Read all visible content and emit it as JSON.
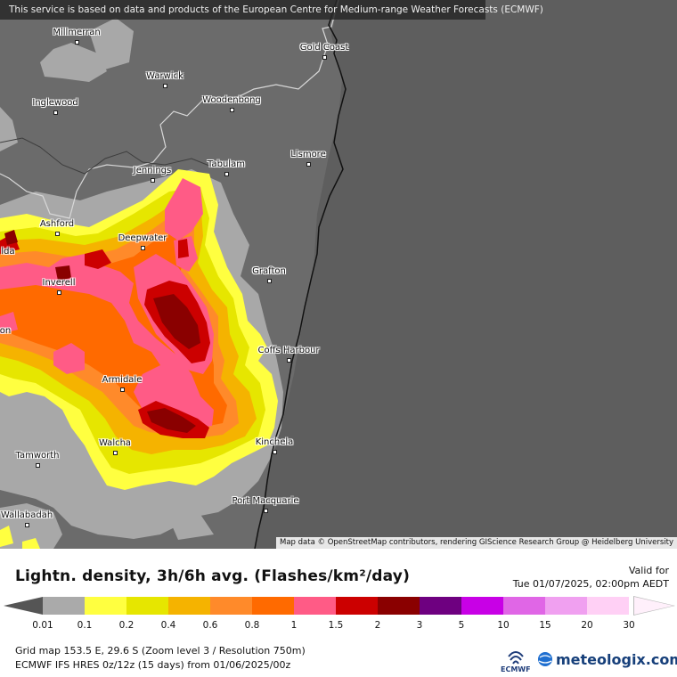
{
  "banner": "This service is based on data and products of the European Centre for Medium-range Weather Forecasts (ECMWF)",
  "attribution": "Map data © OpenStreetMap contributors, rendering GIScience Research Group @ Heidelberg University",
  "cities": [
    {
      "id": "millmerran",
      "name": "Millmerran"
    },
    {
      "id": "gold-coast",
      "name": "Gold Coast"
    },
    {
      "id": "warwick",
      "name": "Warwick"
    },
    {
      "id": "inglewood",
      "name": "Inglewood"
    },
    {
      "id": "woodenbong",
      "name": "Woodenbong"
    },
    {
      "id": "lismore",
      "name": "Lismore"
    },
    {
      "id": "jennings",
      "name": "Jennings"
    },
    {
      "id": "tabulam",
      "name": "Tabulam"
    },
    {
      "id": "ashford",
      "name": "Ashford"
    },
    {
      "id": "deepwater",
      "name": "Deepwater"
    },
    {
      "id": "bundarra",
      "name": "lda"
    },
    {
      "id": "inverell",
      "name": "Inverell"
    },
    {
      "id": "grafton",
      "name": "Grafton"
    },
    {
      "id": "barraba",
      "name": "on"
    },
    {
      "id": "coffs-harbour",
      "name": "Coffs Harbour"
    },
    {
      "id": "armidale",
      "name": "Armidale"
    },
    {
      "id": "kinchela",
      "name": "Kinchela"
    },
    {
      "id": "walcha",
      "name": "Walcha"
    },
    {
      "id": "tamworth",
      "name": "Tamworth"
    },
    {
      "id": "port-macquarie",
      "name": "Port Macquarie"
    },
    {
      "id": "wallabadah",
      "name": "Wallabadah"
    }
  ],
  "legend": {
    "title": "Lightn. density, 3h/6h avg. (Flashes/km²/day)",
    "valid_label": "Valid for",
    "valid_time": "Tue 01/07/2025, 02:00pm AEDT",
    "ticks": [
      "0.01",
      "0.1",
      "0.2",
      "0.4",
      "0.6",
      "0.8",
      "1",
      "1.5",
      "2",
      "3",
      "5",
      "10",
      "15",
      "20",
      "30"
    ],
    "colors": [
      "#aaaaaa",
      "#ffff40",
      "#e6e600",
      "#f5b300",
      "#ff8a2a",
      "#ff6a00",
      "#ff5b86",
      "#cc0000",
      "#8a0000",
      "#6e0080",
      "#c800e6",
      "#e066e6",
      "#f0a0f0",
      "#ffd0f5"
    ],
    "below_color": "#555555",
    "above_color": "#fff0fb"
  },
  "footer": {
    "grid_info": "Grid map 153.5 E, 29.6 S (Zoom level 3 / Resolution 750m)",
    "model_info": "ECMWF IFS HRES 0z/12z (15 days) from  01/06/2025/00z",
    "ecmwf_logo_text": "ECMWF",
    "brand": "meteologix.com"
  }
}
